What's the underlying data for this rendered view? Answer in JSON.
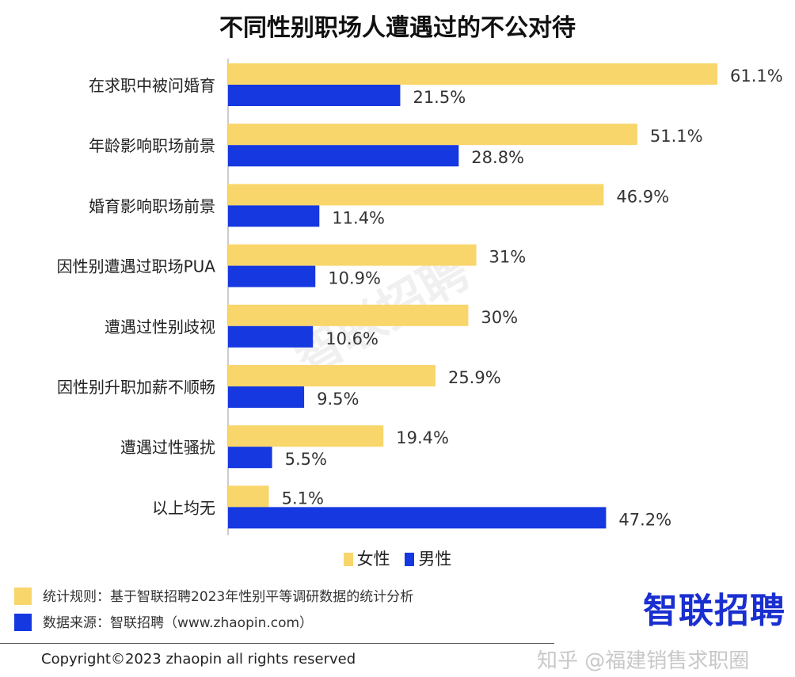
{
  "chart_data": {
    "type": "bar",
    "orientation": "horizontal",
    "title": "不同性别职场人遭遇过的不公对待",
    "categories": [
      "在求职中被问婚育",
      "年龄影响职场前景",
      "婚育影响职场前景",
      "因性别遭遇过职场PUA",
      "遭遇过性别歧视",
      "因性别升职加薪不顺畅",
      "遭遇过性骚扰",
      "以上均无"
    ],
    "series": [
      {
        "name": "女性",
        "color": "#F9D66B",
        "values": [
          61.1,
          51.1,
          46.9,
          31,
          30,
          25.9,
          19.4,
          5.1
        ],
        "labels": [
          "61.1%",
          "51.1%",
          "46.9%",
          "31%",
          "30%",
          "25.9%",
          "19.4%",
          "5.1%"
        ]
      },
      {
        "name": "男性",
        "color": "#1538E0",
        "values": [
          21.5,
          28.8,
          11.4,
          10.9,
          10.6,
          9.5,
          5.5,
          47.2
        ],
        "labels": [
          "21.5%",
          "28.8%",
          "11.4%",
          "10.9%",
          "10.6%",
          "9.5%",
          "5.5%",
          "47.2%"
        ]
      }
    ],
    "unit": "%",
    "xlim": [
      0,
      65
    ],
    "grid": false,
    "legend_position": "bottom"
  },
  "notes": [
    {
      "text": "统计规则：基于智联招聘2023年性别平等调研数据的统计分析",
      "color": "#F9D66B"
    },
    {
      "text": "数据来源：智联招聘（www.zhaopin.com）",
      "color": "#1538E0"
    }
  ],
  "logo": "智联招聘",
  "watermark": "智联招聘",
  "copyright": "Copyright©2023 zhaopin all rights reserved",
  "source_watermark": "知乎 @福建销售求职圈"
}
